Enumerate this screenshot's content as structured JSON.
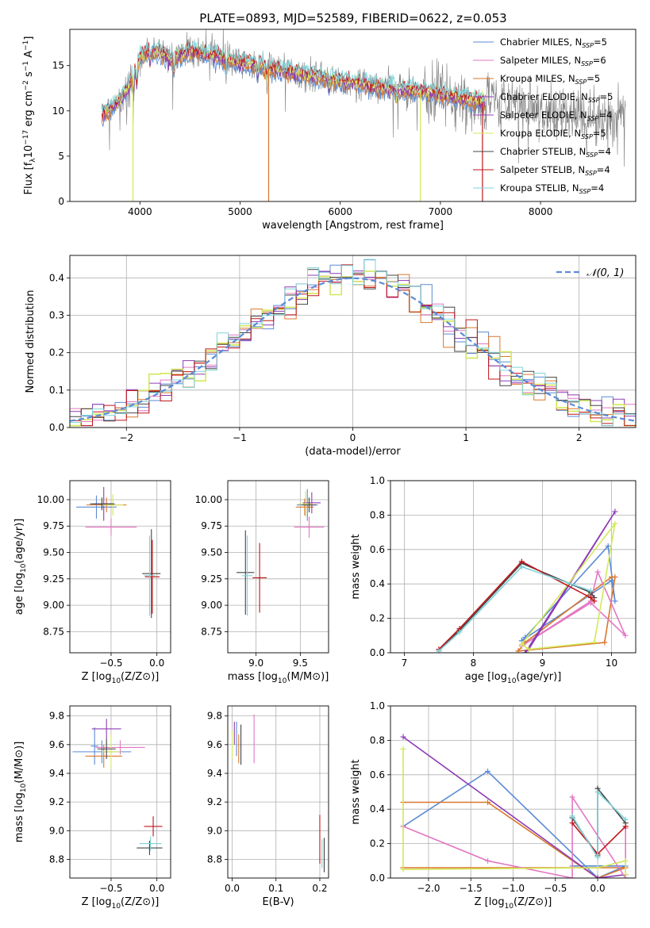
{
  "figure_title": "PLATE=0893, MJD=52589, FIBERID=0622, z=0.053",
  "palette": {
    "chabrier_miles": "#5b8bd6",
    "salpeter_miles": "#e377c2",
    "kroupa_miles": "#d9772b",
    "chabrier_elodie": "#8e3cb6",
    "salpeter_elodie": "#e377c2",
    "kroupa_elodie": "#d3e85a",
    "chabrier_stelib": "#444444",
    "salpeter_stelib": "#c0161a",
    "kroupa_stelib": "#7fd3d8",
    "data": "#7f7f7f",
    "grid": "#b0b0b0"
  },
  "chart_data": [
    {
      "id": "spectrum",
      "type": "line",
      "title": "PLATE=0893, MJD=52589, FIBERID=0622, z=0.053",
      "xlabel": "wavelength [Angstrom, rest frame]",
      "ylabel": "Flux [f_λ10^-17 erg cm^-2 s^-1 A^-1]",
      "xlim": [
        3300,
        8950
      ],
      "ylim": [
        0,
        19
      ],
      "xticks": [
        4000,
        5000,
        6000,
        7000,
        8000
      ],
      "yticks": [
        0,
        5,
        10,
        15
      ],
      "grid": false,
      "legend_position": "top-right",
      "legend": [
        {
          "label": "Chabrier MILES, N",
          "sub": "SSP",
          "suffix": "=5",
          "color": "#5b8bd6"
        },
        {
          "label": "Salpeter MILES, N",
          "sub": "SSP",
          "suffix": "=6",
          "color": "#e377c2"
        },
        {
          "label": "Kroupa MILES, N",
          "sub": "SSP",
          "suffix": "=5",
          "color": "#d9772b"
        },
        {
          "label": "Chabrier ELODIE, N",
          "sub": "SSP",
          "suffix": "=5",
          "color": "#8e3cb6"
        },
        {
          "label": "Salpeter ELODIE, N",
          "sub": "SSP",
          "suffix": "=4",
          "color": "#9b3fb8"
        },
        {
          "label": "Kroupa ELODIE, N",
          "sub": "SSP",
          "suffix": "=5",
          "color": "#d3e85a"
        },
        {
          "label": "Chabrier STELIB, N",
          "sub": "SSP",
          "suffix": "=4",
          "color": "#444444"
        },
        {
          "label": "Salpeter STELIB, N",
          "sub": "SSP",
          "suffix": "=4",
          "color": "#c0161a"
        },
        {
          "label": "Kroupa STELIB, N",
          "sub": "SSP",
          "suffix": "=4",
          "color": "#7fd3d8"
        }
      ],
      "continuum": [
        [
          3620,
          9.5
        ],
        [
          3700,
          10.2
        ],
        [
          3800,
          11.2
        ],
        [
          3900,
          13.0
        ],
        [
          3950,
          14.5
        ],
        [
          4000,
          16.0
        ],
        [
          4100,
          16.6
        ],
        [
          4200,
          16.4
        ],
        [
          4300,
          15.8
        ],
        [
          4400,
          16.1
        ],
        [
          4500,
          16.5
        ],
        [
          4600,
          16.5
        ],
        [
          4700,
          16.2
        ],
        [
          4800,
          16.0
        ],
        [
          4900,
          15.6
        ],
        [
          5000,
          15.3
        ],
        [
          5100,
          15.2
        ],
        [
          5200,
          15.0
        ],
        [
          5300,
          14.6
        ],
        [
          5400,
          14.5
        ],
        [
          5500,
          14.3
        ],
        [
          5600,
          14.1
        ],
        [
          5700,
          13.9
        ],
        [
          5800,
          13.7
        ],
        [
          5900,
          13.5
        ],
        [
          6000,
          13.3
        ],
        [
          6100,
          13.1
        ],
        [
          6200,
          13.0
        ],
        [
          6300,
          12.8
        ],
        [
          6400,
          12.6
        ],
        [
          6500,
          12.5
        ],
        [
          6600,
          12.4
        ],
        [
          6700,
          12.3
        ],
        [
          6800,
          12.2
        ],
        [
          6900,
          12.0
        ],
        [
          7000,
          11.8
        ],
        [
          7100,
          11.6
        ],
        [
          7200,
          11.4
        ],
        [
          7300,
          11.1
        ],
        [
          7400,
          11.0
        ],
        [
          7500,
          11.0
        ],
        [
          7600,
          10.9
        ],
        [
          7700,
          10.6
        ],
        [
          7800,
          10.3
        ],
        [
          7900,
          10.2
        ],
        [
          8000,
          10.0
        ],
        [
          8100,
          9.8
        ],
        [
          8200,
          9.6
        ],
        [
          8300,
          9.5
        ],
        [
          8400,
          9.3
        ],
        [
          8500,
          9.1
        ]
      ],
      "model_end": 7450,
      "data_range": [
        3620,
        8850
      ]
    },
    {
      "id": "residuals",
      "type": "line",
      "xlabel": "(data-model)/error",
      "ylabel": "Normed distribution",
      "xlim": [
        -2.5,
        2.5
      ],
      "ylim": [
        0,
        0.46
      ],
      "xticks": [
        -2,
        -1,
        0,
        1,
        2
      ],
      "yticks": [
        0.0,
        0.1,
        0.2,
        0.3,
        0.4
      ],
      "grid": true,
      "legend_position": "top-right",
      "legend": [
        {
          "label": "𝒩(0, 1)",
          "color": "#5b8bd6",
          "dashed": true
        }
      ],
      "bin_width": 0.1
    },
    {
      "id": "age_vs_Z",
      "type": "scatter",
      "xlabel": "Z [log10(Z/Z⊙)]",
      "ylabel": "age  [log10(age/yr)]",
      "xlim": [
        -0.95,
        0.15
      ],
      "ylim": [
        8.55,
        10.18
      ],
      "xticks": [
        -0.5,
        0.0
      ],
      "yticks": [
        8.75,
        9.0,
        9.25,
        9.5,
        9.75,
        10.0
      ],
      "grid": true,
      "points": [
        {
          "x": -0.66,
          "y": 9.93,
          "xerr": 0.22,
          "yerr": 0.11,
          "color": "#5b8bd6"
        },
        {
          "x": -0.55,
          "y": 9.95,
          "xerr": 0.22,
          "yerr": 0.07,
          "color": "#d9772b"
        },
        {
          "x": -0.5,
          "y": 9.74,
          "xerr": 0.28,
          "yerr": 0.08,
          "color": "#e377c2"
        },
        {
          "x": -0.58,
          "y": 9.96,
          "xerr": 0.12,
          "yerr": 0.16,
          "color": "#8e3cb6"
        },
        {
          "x": -0.48,
          "y": 9.95,
          "xerr": 0.11,
          "yerr": 0.1,
          "color": "#d3e85a"
        },
        {
          "x": -0.6,
          "y": 9.96,
          "xerr": 0.13,
          "yerr": 0.06,
          "color": "#444444"
        },
        {
          "x": -0.06,
          "y": 9.3,
          "xerr": 0.1,
          "yerr": 0.42,
          "color": "#444444"
        },
        {
          "x": -0.05,
          "y": 9.27,
          "xerr": 0.08,
          "yerr": 0.35,
          "color": "#c0161a"
        },
        {
          "x": -0.08,
          "y": 9.28,
          "xerr": 0.06,
          "yerr": 0.38,
          "color": "#7fd3d8"
        }
      ]
    },
    {
      "id": "age_vs_mass",
      "type": "scatter",
      "xlabel": "mass [log10(M/M⊙)]",
      "ylabel": "",
      "xlim": [
        8.68,
        9.82
      ],
      "ylim": [
        8.55,
        10.18
      ],
      "xticks": [
        9.0,
        9.5
      ],
      "yticks": [
        8.75,
        9.0,
        9.25,
        9.5,
        9.75,
        10.0
      ],
      "grid": true,
      "points": [
        {
          "x": 9.6,
          "y": 9.74,
          "xerr": 0.17,
          "yerr": 0.1,
          "color": "#e377c2"
        },
        {
          "x": 9.58,
          "y": 9.95,
          "xerr": 0.12,
          "yerr": 0.15,
          "color": "#5b8bd6"
        },
        {
          "x": 9.55,
          "y": 9.93,
          "xerr": 0.1,
          "yerr": 0.08,
          "color": "#d9772b"
        },
        {
          "x": 9.63,
          "y": 9.97,
          "xerr": 0.1,
          "yerr": 0.1,
          "color": "#8e3cb6"
        },
        {
          "x": 9.56,
          "y": 9.96,
          "xerr": 0.08,
          "yerr": 0.12,
          "color": "#d3e85a"
        },
        {
          "x": 9.6,
          "y": 9.95,
          "xerr": 0.08,
          "yerr": 0.07,
          "color": "#444444"
        },
        {
          "x": 8.88,
          "y": 9.31,
          "xerr": 0.1,
          "yerr": 0.4,
          "color": "#444444"
        },
        {
          "x": 9.04,
          "y": 9.26,
          "xerr": 0.08,
          "yerr": 0.33,
          "color": "#c0161a"
        },
        {
          "x": 8.9,
          "y": 9.28,
          "xerr": 0.06,
          "yerr": 0.38,
          "color": "#7fd3d8"
        }
      ]
    },
    {
      "id": "weight_vs_age",
      "type": "line",
      "xlabel": "age  [log10(age/yr)]",
      "ylabel": "mass weight",
      "xlim": [
        6.8,
        10.35
      ],
      "ylim": [
        0,
        1.0
      ],
      "xticks": [
        7,
        8,
        9,
        10
      ],
      "yticks": [
        0.0,
        0.2,
        0.4,
        0.6,
        0.8,
        1.0
      ],
      "grid": true,
      "series": [
        {
          "color": "#5b8bd6",
          "x": [
            8.7,
            8.75,
            9.95,
            10.05,
            10.0,
            8.7
          ],
          "y": [
            0.07,
            0.09,
            0.62,
            0.3,
            0.42,
            0.07
          ]
        },
        {
          "color": "#d9772b",
          "x": [
            8.65,
            8.75,
            10.0,
            10.05,
            9.9,
            8.65
          ],
          "y": [
            0.01,
            0.06,
            0.44,
            0.44,
            0.06,
            0.01
          ]
        },
        {
          "color": "#e377c2",
          "x": [
            8.7,
            9.7,
            9.8,
            10.2,
            9.7,
            8.7
          ],
          "y": [
            0.04,
            0.3,
            0.47,
            0.1,
            0.29,
            0.04
          ]
        },
        {
          "color": "#8e3cb6",
          "x": [
            8.75,
            8.8,
            10.05,
            8.75
          ],
          "y": [
            0.0,
            0.02,
            0.82,
            0.0
          ]
        },
        {
          "color": "#d3e85a",
          "x": [
            8.7,
            8.8,
            9.75,
            10.05,
            8.7
          ],
          "y": [
            0.05,
            0.02,
            0.06,
            0.75,
            0.05
          ]
        },
        {
          "color": "#444444",
          "x": [
            7.5,
            7.8,
            8.7,
            9.7,
            9.75
          ],
          "y": [
            0.01,
            0.13,
            0.52,
            0.35,
            0.32
          ]
        },
        {
          "color": "#c0161a",
          "x": [
            7.5,
            7.8,
            8.7,
            9.7,
            9.75
          ],
          "y": [
            0.02,
            0.14,
            0.53,
            0.32,
            0.3
          ]
        },
        {
          "color": "#7fd3d8",
          "x": [
            7.5,
            7.8,
            8.7,
            9.7
          ],
          "y": [
            0.01,
            0.12,
            0.5,
            0.36
          ]
        }
      ]
    },
    {
      "id": "mass_vs_Z",
      "type": "scatter",
      "xlabel": "Z [log10(Z/Z⊙)]",
      "ylabel": "mass [log10(M/M⊙)]",
      "xlim": [
        -0.95,
        0.15
      ],
      "ylim": [
        8.67,
        9.87
      ],
      "xticks": [
        -0.5,
        0.0
      ],
      "yticks": [
        8.8,
        9.0,
        9.2,
        9.4,
        9.6,
        9.8
      ],
      "grid": true,
      "points": [
        {
          "x": -0.68,
          "y": 9.59,
          "xerr": 0.04,
          "yerr": 0.13,
          "color": "#5b8bd6"
        },
        {
          "x": -0.6,
          "y": 9.55,
          "xerr": 0.32,
          "yerr": 0.08,
          "color": "#5b8bd6"
        },
        {
          "x": -0.4,
          "y": 9.58,
          "xerr": 0.27,
          "yerr": 0.05,
          "color": "#e377c2"
        },
        {
          "x": -0.58,
          "y": 9.52,
          "xerr": 0.2,
          "yerr": 0.08,
          "color": "#d9772b"
        },
        {
          "x": -0.55,
          "y": 9.71,
          "xerr": 0.16,
          "yerr": 0.07,
          "color": "#8e3cb6"
        },
        {
          "x": -0.5,
          "y": 9.55,
          "xerr": 0.1,
          "yerr": 0.12,
          "color": "#d3e85a"
        },
        {
          "x": -0.55,
          "y": 9.57,
          "xerr": 0.1,
          "yerr": 0.07,
          "color": "#444444"
        },
        {
          "x": -0.08,
          "y": 8.88,
          "xerr": 0.14,
          "yerr": 0.05,
          "color": "#444444"
        },
        {
          "x": -0.04,
          "y": 9.03,
          "xerr": 0.1,
          "yerr": 0.07,
          "color": "#c0161a"
        },
        {
          "x": -0.07,
          "y": 8.91,
          "xerr": 0.12,
          "yerr": 0.05,
          "color": "#7fd3d8"
        }
      ]
    },
    {
      "id": "mass_vs_ebv",
      "type": "scatter",
      "xlabel": "E(B-V)",
      "ylabel": "",
      "xlim": [
        -0.01,
        0.22
      ],
      "ylim": [
        8.67,
        9.87
      ],
      "xticks": [
        0.0,
        0.1,
        0.2
      ],
      "yticks": [
        8.8,
        9.0,
        9.2,
        9.4,
        9.6,
        9.8
      ],
      "grid": true,
      "points": [
        {
          "x": 0.0,
          "y": 9.6,
          "xerr": 0,
          "yerr": 0.1,
          "color": "#d3e85a"
        },
        {
          "x": 0.005,
          "y": 9.68,
          "xerr": 0,
          "yerr": 0.08,
          "color": "#8e3cb6"
        },
        {
          "x": 0.01,
          "y": 9.64,
          "xerr": 0,
          "yerr": 0.12,
          "color": "#5b8bd6"
        },
        {
          "x": 0.015,
          "y": 9.57,
          "xerr": 0,
          "yerr": 0.1,
          "color": "#d9772b"
        },
        {
          "x": 0.02,
          "y": 9.6,
          "xerr": 0,
          "yerr": 0.14,
          "color": "#444444"
        },
        {
          "x": 0.05,
          "y": 9.64,
          "xerr": 0,
          "yerr": 0.17,
          "color": "#e377c2"
        },
        {
          "x": 0.2,
          "y": 8.94,
          "xerr": 0,
          "yerr": 0.17,
          "color": "#c0161a"
        },
        {
          "x": 0.205,
          "y": 8.84,
          "xerr": 0,
          "yerr": 0.1,
          "color": "#7fd3d8"
        },
        {
          "x": 0.21,
          "y": 8.83,
          "xerr": 0,
          "yerr": 0.12,
          "color": "#444444"
        }
      ]
    },
    {
      "id": "weight_vs_Z",
      "type": "line",
      "xlabel": "Z [log10(Z/Z⊙)]",
      "ylabel": "mass weight",
      "xlim": [
        -2.45,
        0.45
      ],
      "ylim": [
        0,
        1.0
      ],
      "xticks": [
        -2.0,
        -1.5,
        -1.0,
        -0.5,
        0.0
      ],
      "yticks": [
        0.0,
        0.2,
        0.4,
        0.6,
        0.8,
        1.0
      ],
      "grid": true,
      "series": [
        {
          "color": "#5b8bd6",
          "x": [
            -2.3,
            -1.3,
            0.0,
            0.33,
            -0.3
          ],
          "y": [
            0.3,
            0.62,
            0.0,
            0.07,
            0.07
          ]
        },
        {
          "color": "#d9772b",
          "x": [
            -2.3,
            -1.3,
            0.0,
            0.33,
            -2.3
          ],
          "y": [
            0.44,
            0.44,
            0.0,
            0.06,
            0.06
          ]
        },
        {
          "color": "#e377c2",
          "x": [
            -2.3,
            -1.3,
            -0.3,
            -0.3,
            0.33,
            0.33
          ],
          "y": [
            0.3,
            0.1,
            0.0,
            0.47,
            0.0,
            0.29
          ]
        },
        {
          "color": "#8e3cb6",
          "x": [
            -2.3,
            0.0,
            0.33
          ],
          "y": [
            0.82,
            0.0,
            0.02
          ]
        },
        {
          "color": "#d3e85a",
          "x": [
            -2.3,
            -2.3,
            0.0,
            0.33,
            0.33
          ],
          "y": [
            0.75,
            0.05,
            0.06,
            0.1,
            0.02
          ]
        },
        {
          "color": "#444444",
          "x": [
            -0.3,
            0.0,
            0.0,
            0.33
          ],
          "y": [
            0.35,
            0.13,
            0.52,
            0.32
          ]
        },
        {
          "color": "#c0161a",
          "x": [
            -0.3,
            0.0,
            0.33
          ],
          "y": [
            0.32,
            0.14,
            0.3
          ]
        },
        {
          "color": "#7fd3d8",
          "x": [
            -0.3,
            0.0,
            0.0,
            0.33
          ],
          "y": [
            0.36,
            0.12,
            0.5,
            0.34
          ]
        }
      ]
    }
  ]
}
